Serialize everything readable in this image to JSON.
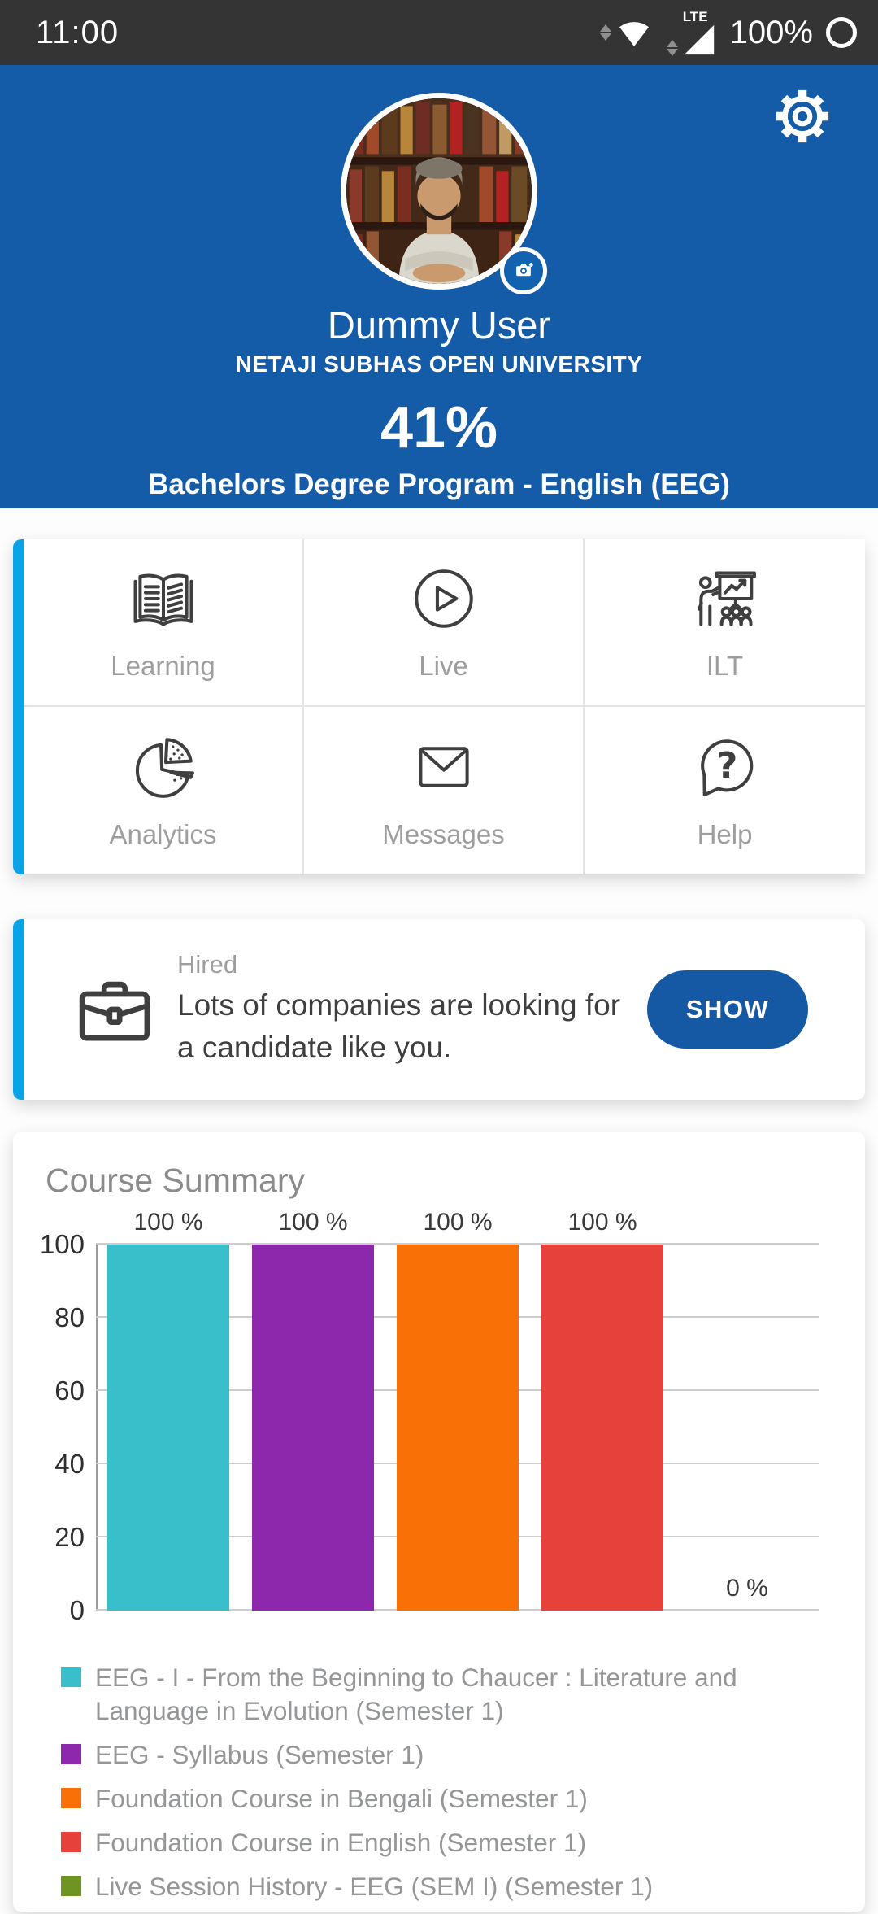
{
  "status_bar": {
    "time": "11:00",
    "network_label": "LTE",
    "battery_percent": "100%"
  },
  "header": {
    "name": "Dummy User",
    "university": "NETAJI SUBHAS OPEN UNIVERSITY",
    "progress": "41%",
    "program": "Bachelors Degree Program - English (EEG)"
  },
  "menu": {
    "items": [
      {
        "label": "Learning",
        "icon": "open-book-icon"
      },
      {
        "label": "Live",
        "icon": "play-circle-icon"
      },
      {
        "label": "ILT",
        "icon": "presentation-icon"
      },
      {
        "label": "Analytics",
        "icon": "pie-chart-icon"
      },
      {
        "label": "Messages",
        "icon": "envelope-icon"
      },
      {
        "label": "Help",
        "icon": "question-bubble-icon"
      }
    ]
  },
  "hired_card": {
    "category_label": "Hired",
    "message": "Lots of companies are looking for a candidate like you.",
    "button_label": "SHOW"
  },
  "chart_data": {
    "type": "bar",
    "title": "Course Summary",
    "categories": [
      "EEG - I - From the Beginning to Chaucer : Literature and Language in Evolution (Semester 1)",
      "EEG - Syllabus (Semester 1)",
      "Foundation Course in Bengali (Semester 1)",
      "Foundation Course in English  (Semester 1)",
      "Live Session History - EEG (SEM I) (Semester 1)"
    ],
    "values": [
      100,
      100,
      100,
      100,
      0
    ],
    "bar_labels": [
      "100 %",
      "100 %",
      "100 %",
      "100 %",
      "0 %"
    ],
    "colors": [
      "#38BFCA",
      "#8D27AB",
      "#F97106",
      "#E6423B",
      "#6F9422"
    ],
    "ylabel": "",
    "xlabel": "",
    "ylim": [
      0,
      100
    ],
    "yticks": [
      0,
      20,
      40,
      60,
      80,
      100
    ],
    "ytick_labels": [
      "0",
      "20",
      "40",
      "60",
      "80",
      "100"
    ],
    "grid": "horizontal",
    "legend_position": "bottom"
  },
  "colors": {
    "header_blue": "#155CA8",
    "accent_cyan": "#0AA3E8",
    "button_blue": "#1558A4",
    "status_bar_bg": "#343434",
    "card_bg": "#FFFFFF",
    "muted_text": "#9E9E9E",
    "dark_text": "#3E3E3E"
  }
}
